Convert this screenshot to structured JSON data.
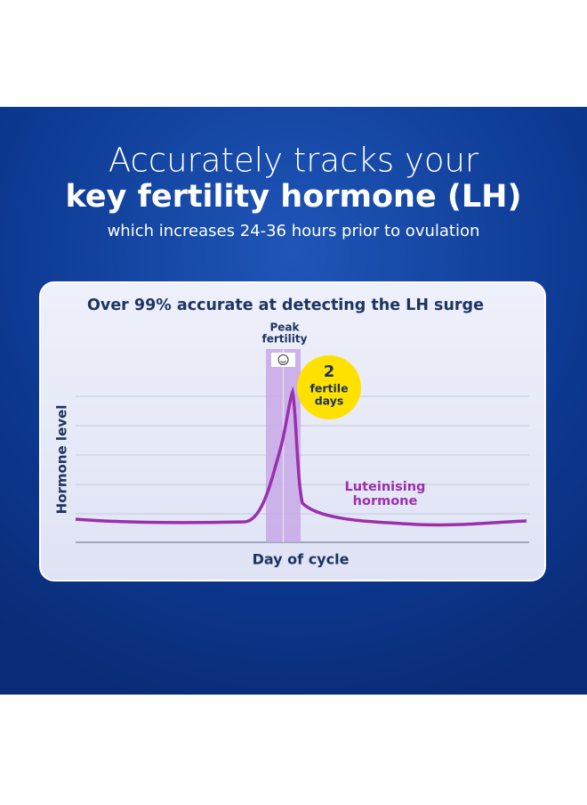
{
  "header": {
    "line1": "Accurately tracks your",
    "line2": "key fertility hormone (LH)",
    "line3": "which increases 24-36 hours prior to ovulation"
  },
  "card": {
    "title": "Over 99% accurate at detecting the LH surge",
    "peak_label": [
      "Peak",
      "fertility"
    ],
    "badge": {
      "number": "2",
      "lines": [
        "fertile",
        "days"
      ]
    },
    "y_axis_label": "Hormone level",
    "curve_label": [
      "Luteinising",
      "hormone"
    ],
    "x_axis_label": "Day of cycle"
  }
}
